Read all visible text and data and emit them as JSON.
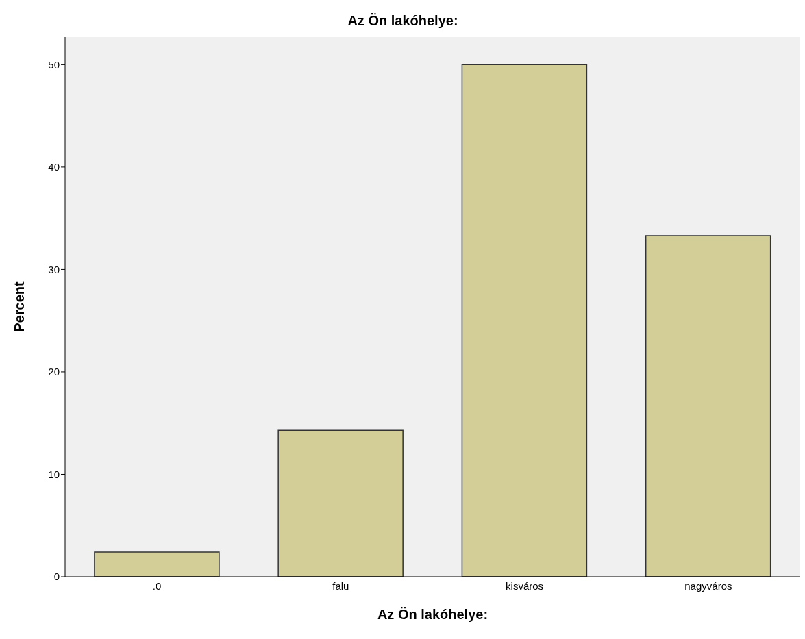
{
  "chart_data": {
    "type": "bar",
    "title": "Az Ön lakóhelye:",
    "xlabel": "Az Ön lakóhelye:",
    "ylabel": "Percent",
    "categories": [
      ".0",
      "falu",
      "kisváros",
      "nagyváros"
    ],
    "values": [
      2.4,
      14.3,
      50.0,
      33.3
    ],
    "color": "#d3ce97",
    "ylim": [
      0,
      52.7
    ],
    "yticks": [
      0,
      10,
      20,
      30,
      40,
      50
    ],
    "grid": false
  }
}
